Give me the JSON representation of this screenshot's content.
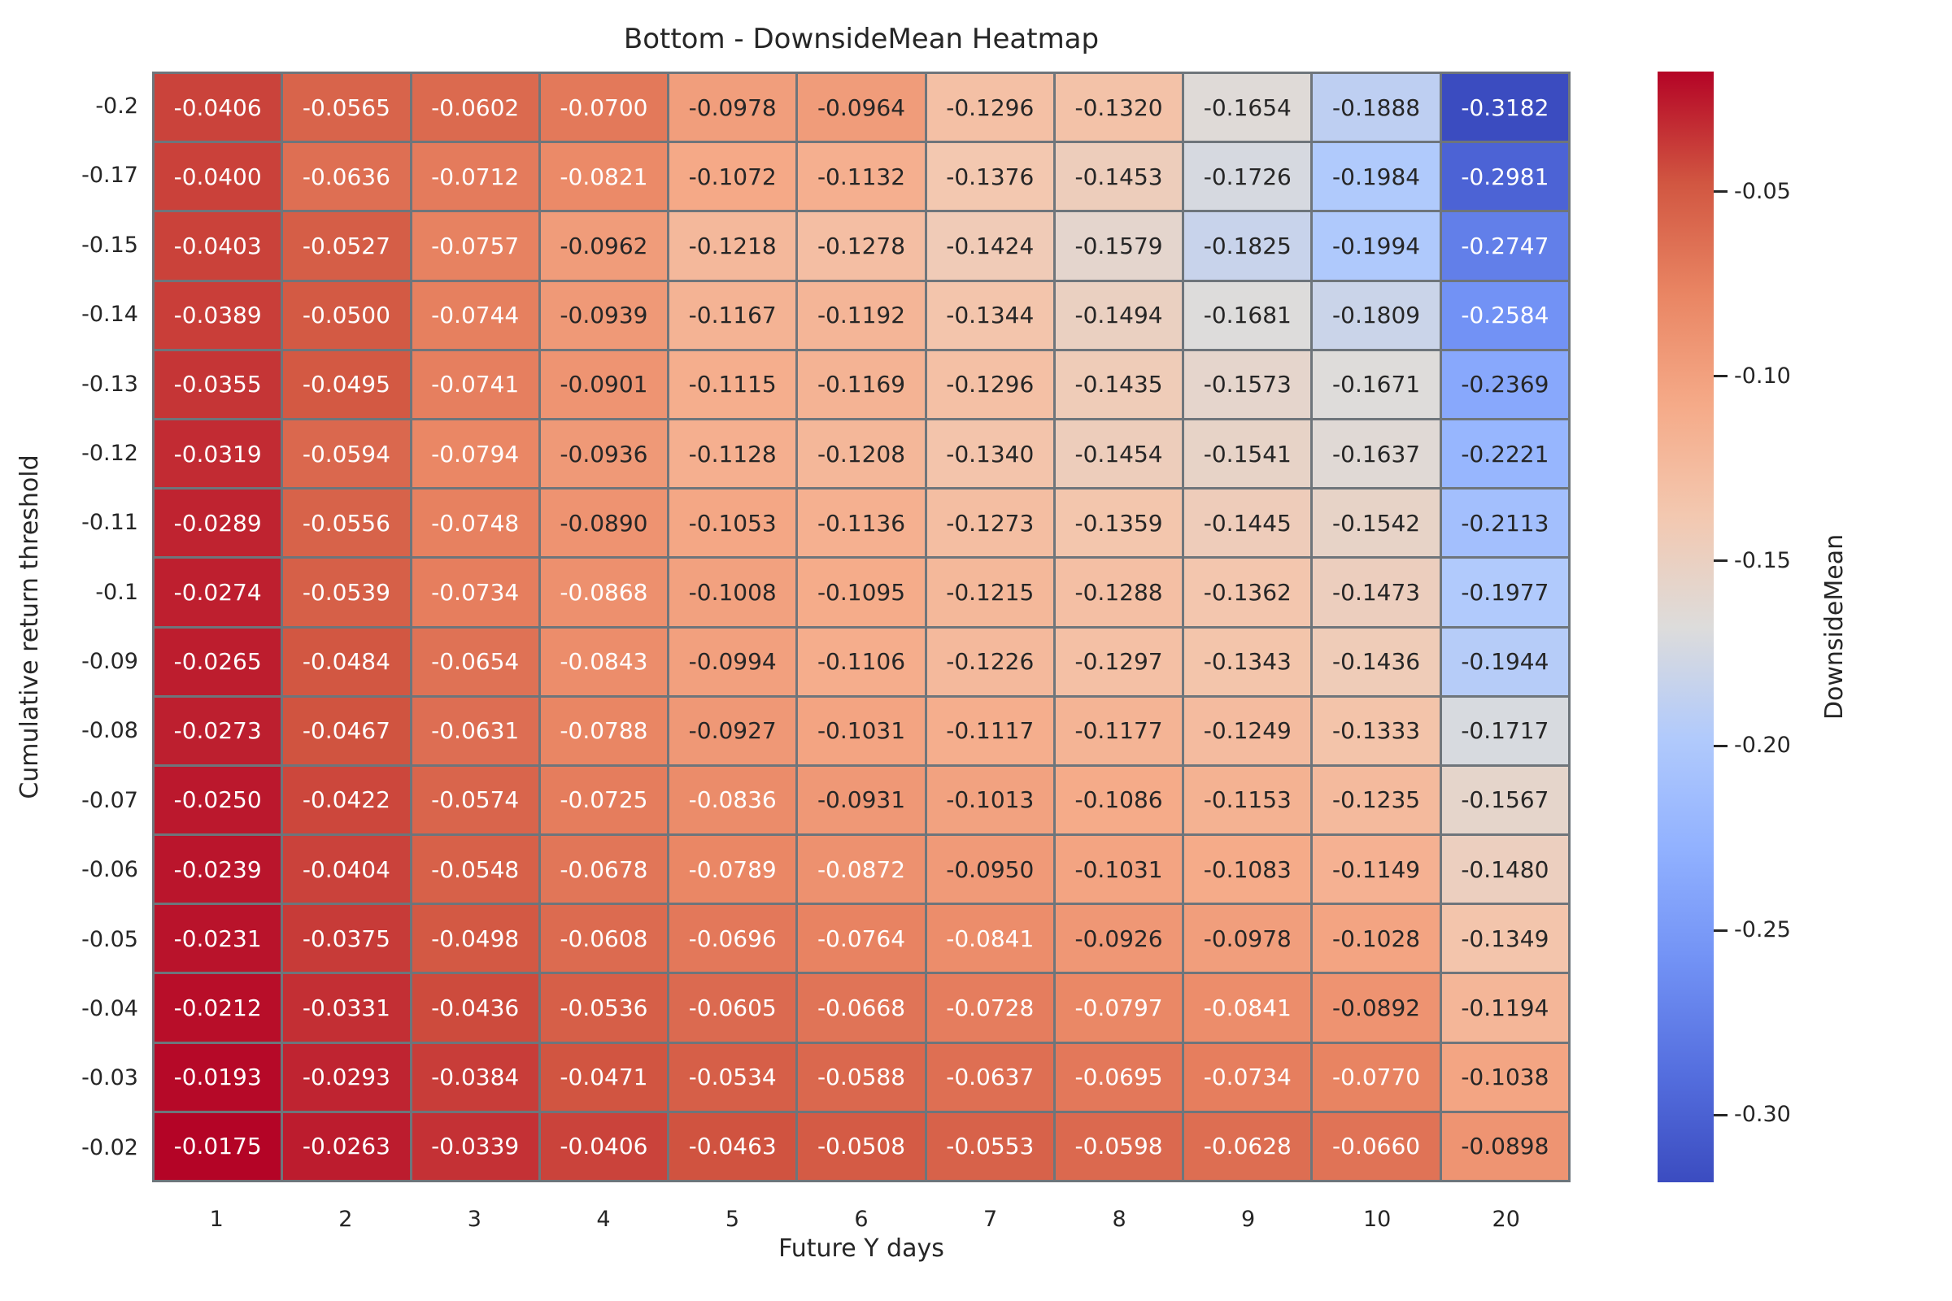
{
  "page": {
    "background": "#ffffff"
  },
  "chart_data": {
    "type": "heatmap",
    "title": "Bottom - DownsideMean Heatmap",
    "xlabel": "Future Y days",
    "ylabel": "Cumulative return threshold",
    "colorbar_label": "DownsideMean",
    "colormap": "coolwarm",
    "vmin": -0.3182,
    "vmax": -0.0175,
    "value_format_decimals": 4,
    "x_categories": [
      "1",
      "2",
      "3",
      "4",
      "5",
      "6",
      "7",
      "8",
      "9",
      "10",
      "20"
    ],
    "y_categories": [
      "-0.2",
      "-0.17",
      "-0.15",
      "-0.14",
      "-0.13",
      "-0.12",
      "-0.11",
      "-0.1",
      "-0.09",
      "-0.08",
      "-0.07",
      "-0.06",
      "-0.05",
      "-0.04",
      "-0.03",
      "-0.02"
    ],
    "values": [
      [
        -0.0406,
        -0.0565,
        -0.0602,
        -0.07,
        -0.0978,
        -0.0964,
        -0.1296,
        -0.132,
        -0.1654,
        -0.1888,
        -0.3182
      ],
      [
        -0.04,
        -0.0636,
        -0.0712,
        -0.0821,
        -0.1072,
        -0.1132,
        -0.1376,
        -0.1453,
        -0.1726,
        -0.1984,
        -0.2981
      ],
      [
        -0.0403,
        -0.0527,
        -0.0757,
        -0.0962,
        -0.1218,
        -0.1278,
        -0.1424,
        -0.1579,
        -0.1825,
        -0.1994,
        -0.2747
      ],
      [
        -0.0389,
        -0.05,
        -0.0744,
        -0.0939,
        -0.1167,
        -0.1192,
        -0.1344,
        -0.1494,
        -0.1681,
        -0.1809,
        -0.2584
      ],
      [
        -0.0355,
        -0.0495,
        -0.0741,
        -0.0901,
        -0.1115,
        -0.1169,
        -0.1296,
        -0.1435,
        -0.1573,
        -0.1671,
        -0.2369
      ],
      [
        -0.0319,
        -0.0594,
        -0.0794,
        -0.0936,
        -0.1128,
        -0.1208,
        -0.134,
        -0.1454,
        -0.1541,
        -0.1637,
        -0.2221
      ],
      [
        -0.0289,
        -0.0556,
        -0.0748,
        -0.089,
        -0.1053,
        -0.1136,
        -0.1273,
        -0.1359,
        -0.1445,
        -0.1542,
        -0.2113
      ],
      [
        -0.0274,
        -0.0539,
        -0.0734,
        -0.0868,
        -0.1008,
        -0.1095,
        -0.1215,
        -0.1288,
        -0.1362,
        -0.1473,
        -0.1977
      ],
      [
        -0.0265,
        -0.0484,
        -0.0654,
        -0.0843,
        -0.0994,
        -0.1106,
        -0.1226,
        -0.1297,
        -0.1343,
        -0.1436,
        -0.1944
      ],
      [
        -0.0273,
        -0.0467,
        -0.0631,
        -0.0788,
        -0.0927,
        -0.1031,
        -0.1117,
        -0.1177,
        -0.1249,
        -0.1333,
        -0.1717
      ],
      [
        -0.025,
        -0.0422,
        -0.0574,
        -0.0725,
        -0.0836,
        -0.0931,
        -0.1013,
        -0.1086,
        -0.1153,
        -0.1235,
        -0.1567
      ],
      [
        -0.0239,
        -0.0404,
        -0.0548,
        -0.0678,
        -0.0789,
        -0.0872,
        -0.095,
        -0.1031,
        -0.1083,
        -0.1149,
        -0.148
      ],
      [
        -0.0231,
        -0.0375,
        -0.0498,
        -0.0608,
        -0.0696,
        -0.0764,
        -0.0841,
        -0.0926,
        -0.0978,
        -0.1028,
        -0.1349
      ],
      [
        -0.0212,
        -0.0331,
        -0.0436,
        -0.0536,
        -0.0605,
        -0.0668,
        -0.0728,
        -0.0797,
        -0.0841,
        -0.0892,
        -0.1194
      ],
      [
        -0.0193,
        -0.0293,
        -0.0384,
        -0.0471,
        -0.0534,
        -0.0588,
        -0.0637,
        -0.0695,
        -0.0734,
        -0.077,
        -0.1038
      ],
      [
        -0.0175,
        -0.0263,
        -0.0339,
        -0.0406,
        -0.0463,
        -0.0508,
        -0.0553,
        -0.0598,
        -0.0628,
        -0.066,
        -0.0898
      ]
    ],
    "colorbar_ticks": [
      {
        "value": -0.05,
        "label": "-0.05"
      },
      {
        "value": -0.1,
        "label": "-0.10"
      },
      {
        "value": -0.15,
        "label": "-0.15"
      },
      {
        "value": -0.2,
        "label": "-0.20"
      },
      {
        "value": -0.25,
        "label": "-0.25"
      },
      {
        "value": -0.3,
        "label": "-0.30"
      }
    ],
    "colormap_anchors": [
      [
        0.0,
        59,
        76,
        192
      ],
      [
        0.1,
        85,
        111,
        223
      ],
      [
        0.2,
        114,
        146,
        245
      ],
      [
        0.3,
        145,
        177,
        255
      ],
      [
        0.4,
        177,
        202,
        252
      ],
      [
        0.5,
        221,
        220,
        219
      ],
      [
        0.6,
        243,
        200,
        176
      ],
      [
        0.7,
        245,
        170,
        136
      ],
      [
        0.8,
        233,
        133,
        99
      ],
      [
        0.9,
        209,
        86,
        65
      ],
      [
        1.0,
        180,
        4,
        38
      ]
    ],
    "colors": {
      "grid_line": "#6e757b",
      "annot_dark": "#262626",
      "annot_light": "#ffffff",
      "tick_label": "#262626",
      "title_text": "#262626"
    }
  }
}
